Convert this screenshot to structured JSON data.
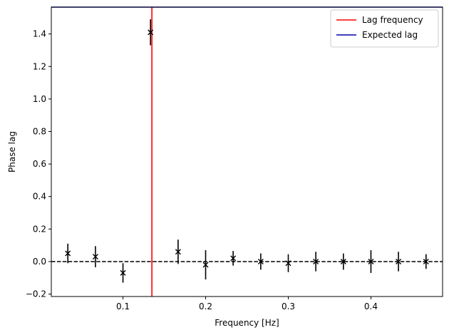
{
  "chart_data": {
    "type": "scatter",
    "xlabel": "Frequency [Hz]",
    "ylabel": "Phase lag",
    "xlim": [
      0.0133,
      0.4867
    ],
    "ylim": [
      -0.215,
      1.565
    ],
    "xticks": [
      0.1,
      0.2,
      0.3,
      0.4
    ],
    "xtick_labels": [
      "0.1",
      "0.2",
      "0.3",
      "0.4"
    ],
    "yticks": [
      -0.2,
      0.0,
      0.2,
      0.4,
      0.6,
      0.8,
      1.0,
      1.2,
      1.4
    ],
    "ytick_labels": [
      "−0.2",
      "0.0",
      "0.2",
      "0.4",
      "0.6",
      "0.8",
      "1.0",
      "1.2",
      "1.4"
    ],
    "grid": false,
    "legend_position": "top-right",
    "series": [
      {
        "type": "errorbar",
        "marker": "x",
        "color": "#000000",
        "x": [
          0.0333,
          0.0667,
          0.1,
          0.1333,
          0.1667,
          0.2,
          0.2333,
          0.2667,
          0.3,
          0.3333,
          0.3667,
          0.4,
          0.4333,
          0.4667
        ],
        "y": [
          0.05,
          0.03,
          -0.07,
          1.41,
          0.06,
          -0.02,
          0.02,
          0.0,
          -0.01,
          0.0,
          0.0,
          0.0,
          0.0,
          0.0
        ],
        "yerr": [
          0.06,
          0.065,
          0.06,
          0.08,
          0.075,
          0.09,
          0.045,
          0.05,
          0.055,
          0.06,
          0.05,
          0.07,
          0.06,
          0.045
        ]
      }
    ],
    "reference_lines": [
      {
        "orientation": "horizontal",
        "value": 0.0,
        "style": "dashed",
        "color": "#000000"
      },
      {
        "orientation": "vertical",
        "value": 0.135,
        "style": "solid",
        "color": "#ff0000",
        "name": "Lag frequency"
      },
      {
        "orientation": "horizontal",
        "value": 1.565,
        "style": "solid",
        "color": "#0000aa",
        "name": "Expected lag"
      }
    ],
    "legend": [
      {
        "label": "Lag frequency",
        "color": "#ff0000"
      },
      {
        "label": "Expected lag",
        "color": "#0000aa"
      }
    ]
  }
}
